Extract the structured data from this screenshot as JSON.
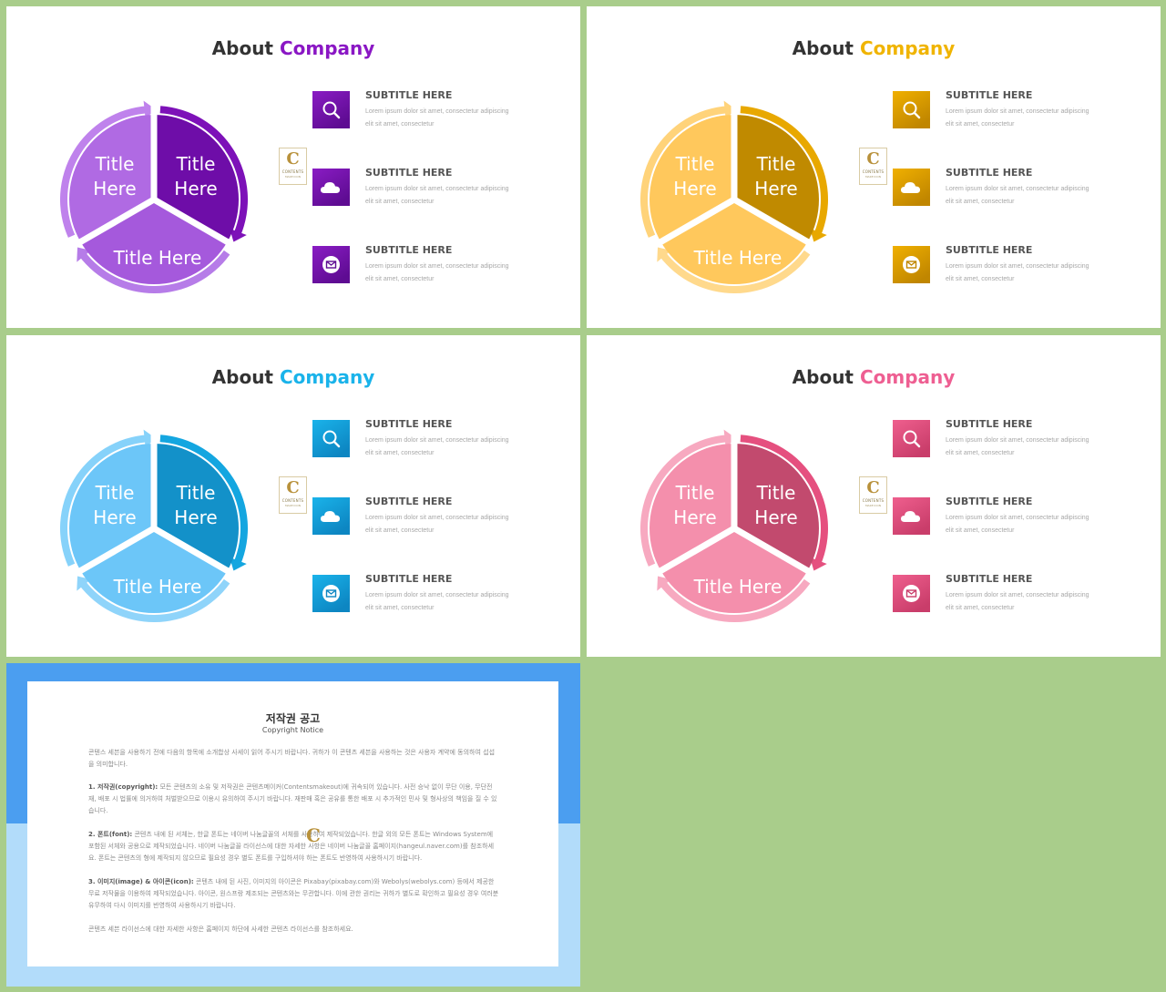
{
  "slides": [
    {
      "title_a": "About",
      "title_b": "Company",
      "accent": "#8a17c4",
      "colors": {
        "light": "#b06ae3",
        "dark": "#6e0da8",
        "bottom": "#a559dc",
        "arrow_light": "#bf82ec",
        "arrow_dark": "#7d11b8",
        "arrow_bottom": "#b67ce8",
        "icon_top": "#8a1cc4",
        "icon_bottom": "#5e0c92"
      },
      "segments": {
        "left": [
          "Title",
          "Here"
        ],
        "right": [
          "Title",
          "Here"
        ],
        "bottom": "Title Here"
      },
      "items": [
        {
          "icon": "search-icon",
          "subtitle": "SUBTITLE HERE",
          "line1": "Lorem ipsum dolor sit amet, consectetur adipiscing",
          "line2": "elit sit amet, consectetur"
        },
        {
          "icon": "cloud-icon",
          "subtitle": "SUBTITLE HERE",
          "line1": "Lorem ipsum dolor sit amet, consectetur adipiscing",
          "line2": "elit sit amet, consectetur"
        },
        {
          "icon": "mail-icon",
          "subtitle": "SUBTITLE HERE",
          "line1": "Lorem ipsum dolor sit amet, consectetur adipiscing",
          "line2": "elit sit amet, consectetur"
        }
      ]
    },
    {
      "title_a": "About",
      "title_b": "Company",
      "accent": "#f0b400",
      "colors": {
        "light": "#ffc85c",
        "dark": "#c08a00",
        "bottom": "#ffc85c",
        "arrow_light": "#ffd37a",
        "arrow_dark": "#e8a800",
        "arrow_bottom": "#ffd98c",
        "icon_top": "#f0b000",
        "icon_bottom": "#c08600"
      },
      "segments": {
        "left": [
          "Title",
          "Here"
        ],
        "right": [
          "Title",
          "Here"
        ],
        "bottom": "Title Here"
      },
      "items": [
        {
          "icon": "search-icon",
          "subtitle": "SUBTITLE HERE",
          "line1": "Lorem ipsum dolor sit amet, consectetur adipiscing",
          "line2": "elit sit amet, consectetur"
        },
        {
          "icon": "cloud-icon",
          "subtitle": "SUBTITLE HERE",
          "line1": "Lorem ipsum dolor sit amet, consectetur adipiscing",
          "line2": "elit sit amet, consectetur"
        },
        {
          "icon": "mail-icon",
          "subtitle": "SUBTITLE HERE",
          "line1": "Lorem ipsum dolor sit amet, consectetur adipiscing",
          "line2": "elit sit amet, consectetur"
        }
      ]
    },
    {
      "title_a": "About",
      "title_b": "Company",
      "accent": "#1ab3ea",
      "colors": {
        "light": "#6cc6f8",
        "dark": "#1391c9",
        "bottom": "#6cc6f8",
        "arrow_light": "#86d2fa",
        "arrow_dark": "#14a6e0",
        "arrow_bottom": "#8fd4fa",
        "icon_top": "#1ab3ea",
        "icon_bottom": "#0d86c2"
      },
      "segments": {
        "left": [
          "Title",
          "Here"
        ],
        "right": [
          "Title",
          "Here"
        ],
        "bottom": "Title Here"
      },
      "items": [
        {
          "icon": "search-icon",
          "subtitle": "SUBTITLE HERE",
          "line1": "Lorem ipsum dolor sit amet, consectetur adipiscing",
          "line2": "elit sit amet, consectetur"
        },
        {
          "icon": "cloud-icon",
          "subtitle": "SUBTITLE HERE",
          "line1": "Lorem ipsum dolor sit amet, consectetur adipiscing",
          "line2": "elit sit amet, consectetur"
        },
        {
          "icon": "mail-icon",
          "subtitle": "SUBTITLE HERE",
          "line1": "Lorem ipsum dolor sit amet, consectetur adipiscing",
          "line2": "elit sit amet, consectetur"
        }
      ]
    },
    {
      "title_a": "About",
      "title_b": "Company",
      "accent": "#ee5f92",
      "colors": {
        "light": "#f48fac",
        "dark": "#c24a6e",
        "bottom": "#f48fac",
        "arrow_light": "#f7a9c0",
        "arrow_dark": "#e5507f",
        "arrow_bottom": "#f7a9c0",
        "icon_top": "#ef5f8e",
        "icon_bottom": "#c93d6a"
      },
      "segments": {
        "left": [
          "Title",
          "Here"
        ],
        "right": [
          "Title",
          "Here"
        ],
        "bottom": "Title Here"
      },
      "items": [
        {
          "icon": "search-icon",
          "subtitle": "SUBTITLE HERE",
          "line1": "Lorem ipsum dolor sit amet, consectetur adipiscing",
          "line2": "elit sit amet, consectetur"
        },
        {
          "icon": "cloud-icon",
          "subtitle": "SUBTITLE HERE",
          "line1": "Lorem ipsum dolor sit amet, consectetur adipiscing",
          "line2": "elit sit amet, consectetur"
        },
        {
          "icon": "mail-icon",
          "subtitle": "SUBTITLE HERE",
          "line1": "Lorem ipsum dolor sit amet, consectetur adipiscing",
          "line2": "elit sit amet, consectetur"
        }
      ]
    }
  ],
  "logo": {
    "letter": "C",
    "line1": "CONTENTS",
    "line2": "MAKE ICON"
  },
  "notice": {
    "title": "저작권 공고",
    "subtitle": "Copyright Notice",
    "para0": "콘텐스 세븐을 사용하기 전에 다음의 항목에 소개합상 사세이 읽어 주시기 바랍니다. 귀하가 이 콘텐츠 세븐을 사용하는 것은 사용자 계약에 동의하여 섭섭을 의미합니다.",
    "para1_lead": "1. 저작권(copyright):",
    "para1": " 모든 콘텐츠의 소유 및 저작권은 콘텐츠메이커(Contentsmakeout)에 귀속되어 있습니다. 사전 승낙 없이 무단 이용, 무단전재, 배포 시 법률에 의거하여 처벌받으므로 이용시 유의하여 주시기 바랍니다. 재판매 혹은 공유를 통한 배포 시 추가적인 민사 및 형사상의 책임을 질 수 있습니다.",
    "para2_lead": "2. 폰트(font):",
    "para2": " 콘텐츠 내에 된 서체는, 한글 폰트는 네이버 나눔글꼴의 서체를 사용하여 제작되었습니다. 한글 외의 모든 폰트는 Windows System에 포함된 서체와 공용으로 제작되었습니다. 네이버 나눔글꼴 라이선스에 대한 자세한 사항은 네이버 나눔글꼴 홈페이지(hangeul.naver.com)를 참조하세요. 폰트는 콘텐츠의 형에 제작되지 않으므로 필요성 경우 별도 폰트를 구입하셔야 하는 폰트도 반영하여 사용하시기 바랍니다.",
    "para3_lead": "3. 이미지(image) & 아이콘(icon):",
    "para3": " 콘텐츠 내에 된 사진, 이미지의 아이콘은 Pixabay(pixabay.com)와 Webolys(webolys.com) 등에서 제공한 무료 저작물을 이용하여 제작되었습니다. 아이콘, 원스프랑 제조되는 콘텐츠와는 무관합니다. 이에 관한 권리는 귀하가 별도로 확인하고 필요성 경우 여러분 유무하여 다시 이미지를 반영하여 사용하시기 바랍니다.",
    "para4": "콘텐츠 세븐 라이선스에 대한 자세한 사항은 홈페이지 하단에 사세한 콘텐츠 라이선스를 참조하세요."
  }
}
